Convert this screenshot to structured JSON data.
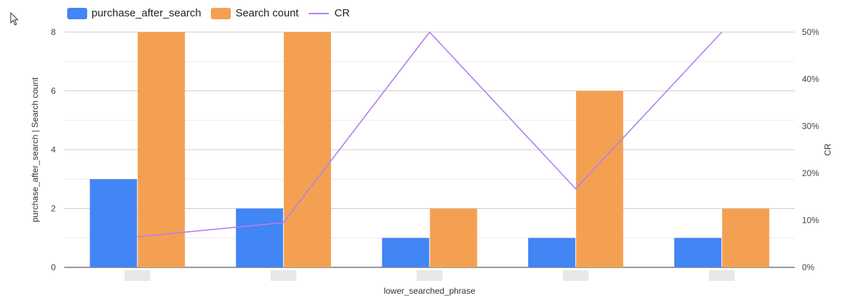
{
  "chart_data": {
    "type": "bar",
    "categories": [
      "",
      "",
      "",
      "",
      ""
    ],
    "series": [
      {
        "name": "purchase_after_search",
        "values": [
          3,
          2,
          1,
          1,
          1
        ],
        "color": "#4285f4",
        "axis": "left"
      },
      {
        "name": "Search count",
        "values": [
          8,
          8,
          2,
          6,
          2
        ],
        "color": "#f4a052",
        "axis": "left"
      },
      {
        "name": "CR",
        "type": "line",
        "values": [
          0.065,
          0.095,
          0.5,
          0.167,
          0.5
        ],
        "color": "#b57eed",
        "axis": "right"
      }
    ],
    "xlabel": "lower_searched_phrase",
    "ylabel": "purchase_after_search | Search count",
    "y2label": "CR",
    "ylim": [
      0,
      8
    ],
    "y2lim": [
      0,
      0.5
    ],
    "yticks": [
      "0",
      "2",
      "4",
      "6",
      "8"
    ],
    "y2ticks": [
      "0%",
      "10%",
      "20%",
      "30%",
      "40%",
      "50%"
    ],
    "grid": true,
    "legend_position": "top-left"
  }
}
